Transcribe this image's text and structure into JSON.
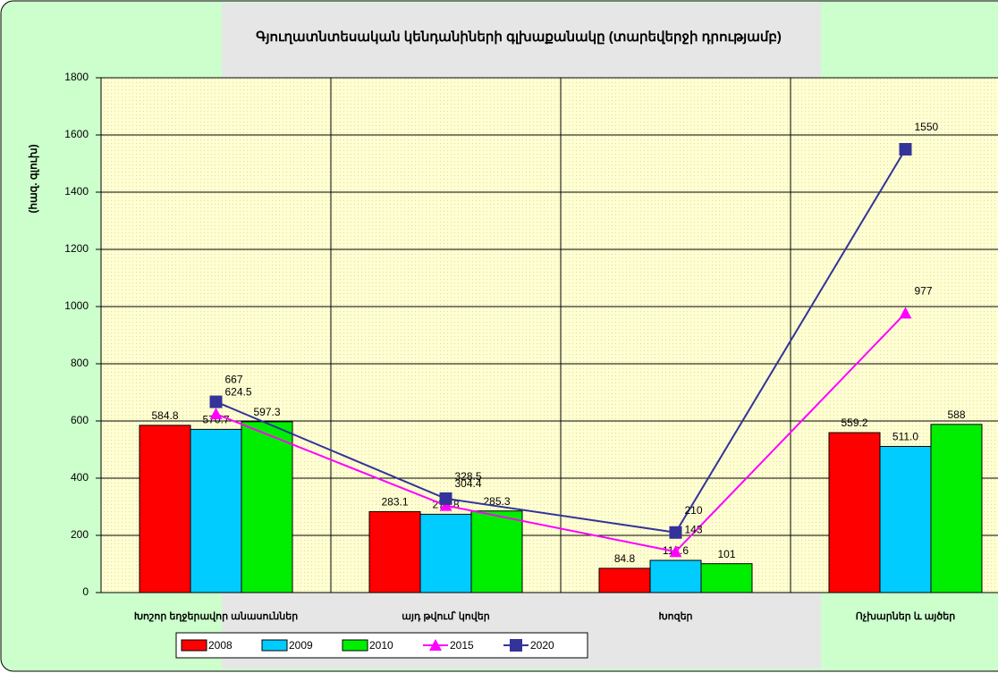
{
  "chart_data": {
    "type": "bar",
    "title": "Գյուղատնտեսական կենդանիների գլխաքանակը (տարեվերջի դրությամբ)",
    "y_label": "(հազ. գլուխ)",
    "categories": [
      "Խոշոր եղջերավոր անասուններ",
      "այդ թվում՝ կովեր",
      "Խոզեր",
      "Ոչխարներ և այծեր"
    ],
    "series": [
      {
        "name": "2008",
        "type": "bar",
        "color": "#ff0000",
        "values": [
          584.8,
          283.1,
          84.8,
          559.2
        ]
      },
      {
        "name": "2009",
        "type": "bar",
        "color": "#00ccff",
        "values": [
          570.7,
          273.8,
          112.6,
          511.0
        ],
        "value_labels": [
          "570.7",
          "273.8",
          "112.6",
          "511.0"
        ]
      },
      {
        "name": "2010",
        "type": "bar",
        "color": "#00ee00",
        "values": [
          597.3,
          285.3,
          101,
          588
        ]
      },
      {
        "name": "2015",
        "type": "line",
        "color": "#ff00ff",
        "marker": "triangle",
        "values": [
          624.5,
          304.4,
          143,
          977
        ]
      },
      {
        "name": "2020",
        "type": "line",
        "color": "#333399",
        "marker": "square",
        "values": [
          667,
          328.5,
          210,
          1550
        ]
      }
    ],
    "ylim": [
      0,
      1800
    ],
    "yticks": [
      0,
      200,
      400,
      600,
      800,
      1000,
      1200,
      1400,
      1600,
      1800
    ],
    "grid": true,
    "legend": "bottom"
  }
}
